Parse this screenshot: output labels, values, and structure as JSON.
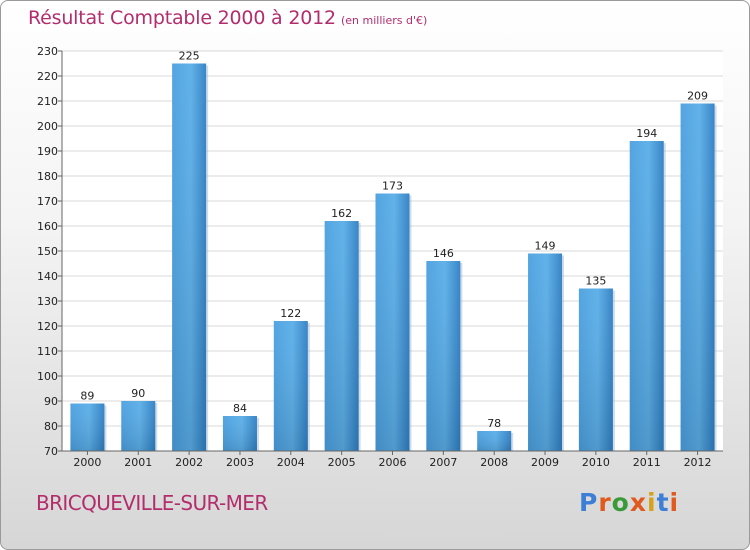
{
  "chart_data": {
    "type": "bar",
    "title": "Résultat Comptable 2000 à 2012",
    "subtitle": "(en milliers d'€)",
    "categories": [
      "2000",
      "2001",
      "2002",
      "2003",
      "2004",
      "2005",
      "2006",
      "2007",
      "2008",
      "2009",
      "2010",
      "2011",
      "2012"
    ],
    "values": [
      89,
      90,
      225,
      84,
      122,
      162,
      173,
      146,
      78,
      149,
      135,
      194,
      209
    ],
    "ylim": [
      70,
      230
    ],
    "yticks": [
      70,
      80,
      90,
      100,
      110,
      120,
      130,
      140,
      150,
      160,
      170,
      180,
      190,
      200,
      210,
      220,
      230
    ],
    "xlabel": "",
    "ylabel": "",
    "grid": true,
    "bar_color": "#3d8fd6"
  },
  "footer": {
    "region": "BRICQUEVILLE-SUR-MER",
    "logo": "Proxiti"
  },
  "colors": {
    "accent": "#b32d6d",
    "logo_letters": [
      "#3d7fd6",
      "#e05a1e",
      "#3a9a3a",
      "#e05a1e",
      "#d6a21e",
      "#3d7fd6",
      "#e05a1e"
    ]
  }
}
